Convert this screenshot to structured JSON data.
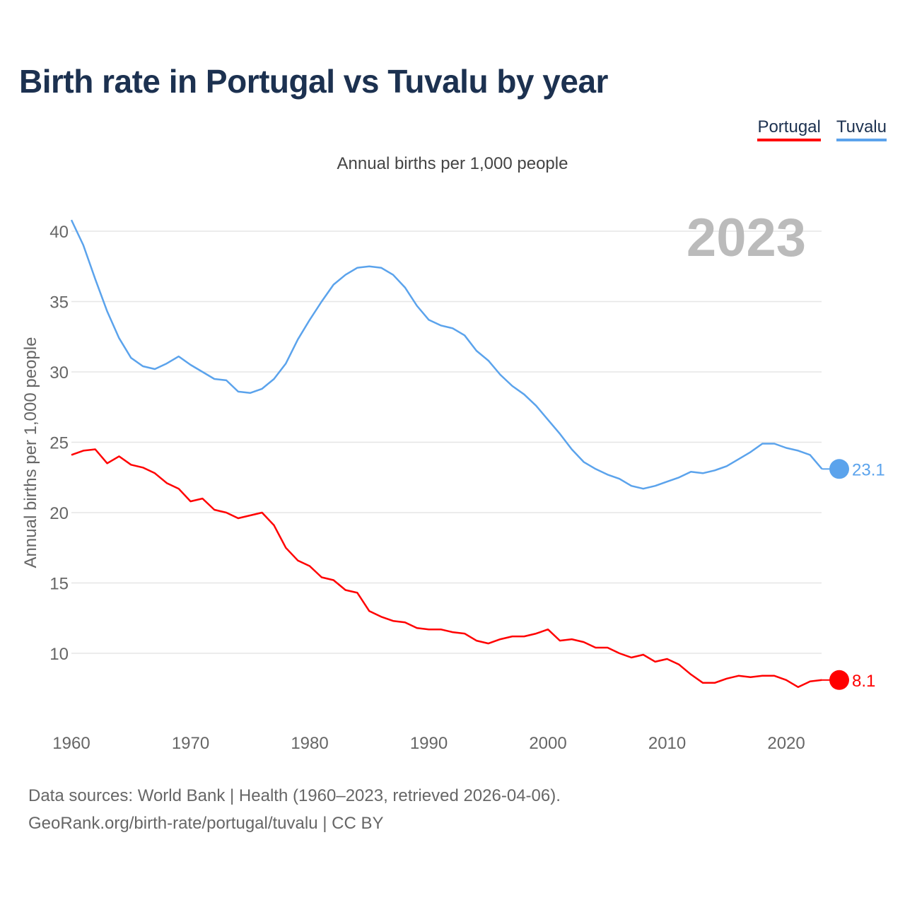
{
  "title": "Birth rate in Portugal vs Tuvalu by year",
  "legend": [
    {
      "label": "Portugal",
      "color": "#ff0000"
    },
    {
      "label": "Tuvalu",
      "color": "#5ba3ec"
    }
  ],
  "footer": {
    "line1": "Data sources: World Bank | Health (1960–2023, retrieved 2026-04-06).",
    "line2": "GeoRank.org/birth-rate/portugal/tuvalu | CC BY"
  },
  "chart_data": {
    "type": "line",
    "title": "Birth rate in Portugal vs Tuvalu by year",
    "subtitle": "Annual births per 1,000 people",
    "ylabel": "Annual births per 1,000 people",
    "xlabel": "",
    "year_label": "2023",
    "xlim": [
      1960,
      2023
    ],
    "ylim": [
      5.5,
      42
    ],
    "grid": true,
    "legend_position": "top-right",
    "x_ticks": [
      1960,
      1970,
      1980,
      1990,
      2000,
      2010,
      2020
    ],
    "y_ticks": [
      10,
      15,
      20,
      25,
      30,
      35,
      40
    ],
    "x_start": 1960,
    "series": [
      {
        "name": "Portugal",
        "color": "#ff0000",
        "end_label": "8.1",
        "values": [
          24.1,
          24.4,
          24.5,
          23.5,
          24.0,
          23.4,
          23.2,
          22.8,
          22.1,
          21.7,
          20.8,
          21.0,
          20.2,
          20.0,
          19.6,
          19.8,
          20.0,
          19.1,
          17.5,
          16.6,
          16.2,
          15.4,
          15.2,
          14.5,
          14.3,
          13.0,
          12.6,
          12.3,
          12.2,
          11.8,
          11.7,
          11.7,
          11.5,
          11.4,
          10.9,
          10.7,
          11.0,
          11.2,
          11.2,
          11.4,
          11.7,
          10.9,
          11.0,
          10.8,
          10.4,
          10.4,
          10.0,
          9.7,
          9.9,
          9.4,
          9.6,
          9.2,
          8.5,
          7.9,
          7.9,
          8.2,
          8.4,
          8.3,
          8.4,
          8.4,
          8.1,
          7.6,
          8.0,
          8.1
        ]
      },
      {
        "name": "Tuvalu",
        "color": "#5ba3ec",
        "end_label": "23.1",
        "values": [
          40.8,
          39.0,
          36.6,
          34.3,
          32.4,
          31.0,
          30.4,
          30.2,
          30.6,
          31.1,
          30.5,
          30.0,
          29.5,
          29.4,
          28.6,
          28.5,
          28.8,
          29.5,
          30.6,
          32.3,
          33.7,
          35.0,
          36.2,
          36.9,
          37.4,
          37.5,
          37.4,
          36.9,
          36.0,
          34.7,
          33.7,
          33.3,
          33.1,
          32.6,
          31.5,
          30.8,
          29.8,
          29.0,
          28.4,
          27.6,
          26.6,
          25.6,
          24.5,
          23.6,
          23.1,
          22.7,
          22.4,
          21.9,
          21.7,
          21.9,
          22.2,
          22.5,
          22.9,
          22.8,
          23.0,
          23.3,
          23.8,
          24.3,
          24.9,
          24.9,
          24.6,
          24.4,
          24.1,
          23.1
        ]
      }
    ]
  }
}
